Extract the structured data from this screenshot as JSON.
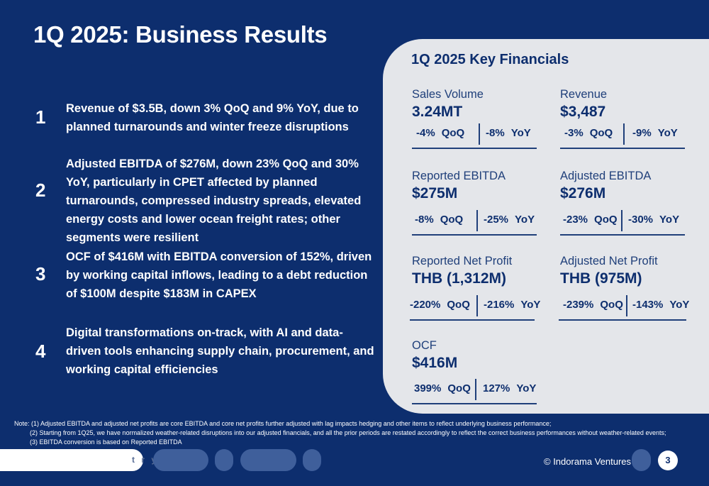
{
  "title": "1Q 2025: Business Results",
  "points": [
    {
      "num": "1",
      "text": "Revenue of $3.5B, down 3% QoQ and 9% YoY, due to planned turnarounds and winter freeze disruptions"
    },
    {
      "num": "2",
      "text": "Adjusted EBITDA of $276M, down 23% QoQ and 30% YoY, particularly in CPET affected by planned turnarounds, compressed industry spreads, elevated energy costs and lower ocean freight rates; other segments were resilient"
    },
    {
      "num": "3",
      "text": "OCF of $416M with EBITDA conversion of 152%, driven by working capital inflows, leading to a debt reduction of $100M despite $183M in CAPEX"
    },
    {
      "num": "4",
      "text": "Digital transformations on-track, with AI and data-driven tools enhancing supply chain, procurement, and working capital efficiencies"
    }
  ],
  "panel": {
    "title": "1Q 2025 Key Financials",
    "metrics": [
      {
        "label": "Sales Volume",
        "value": "3.24MT",
        "qoq": "-4%",
        "yoy": "-8%"
      },
      {
        "label": "Revenue",
        "value": "$3,487",
        "qoq": "-3%",
        "yoy": "-9%"
      },
      {
        "label": "Reported EBITDA",
        "value": "$275M",
        "qoq": "-8%",
        "yoy": "-25%"
      },
      {
        "label": "Adjusted EBITDA",
        "value": "$276M",
        "qoq": "-23%",
        "yoy": "-30%"
      },
      {
        "label": "Reported Net Profit",
        "value": "THB (1,312M)",
        "qoq": "-220%",
        "yoy": "-216%"
      },
      {
        "label": "Adjusted Net Profit",
        "value": "THB (975M)",
        "qoq": "-239%",
        "yoy": "-143%"
      },
      {
        "label": "OCF",
        "value": "$416M",
        "qoq": "399%",
        "yoy": "127%"
      }
    ],
    "qoq_label": "QoQ",
    "yoy_label": "YoY"
  },
  "notes": [
    "Note: (1) Adjusted EBITDA and adjusted net profits are core EBITDA and core net profits further adjusted with lag impacts hedging and other items to reflect underlying business performance;",
    "(2) Starting from 1Q25, we have normalized weather-related disruptions into our adjusted financials, and all the prior periods are restated accordingly to reflect the correct business performances without weather-related events;",
    "(3) EBITDA conversion is based on Reported EBITDA"
  ],
  "footer": {
    "partial_word": "t r y",
    "copyright": "© Indorama Ventures",
    "page": "3"
  },
  "colors": {
    "background": "#0d2e6e",
    "panel": "#e4e6ea",
    "accent": "#3f5f9b"
  }
}
